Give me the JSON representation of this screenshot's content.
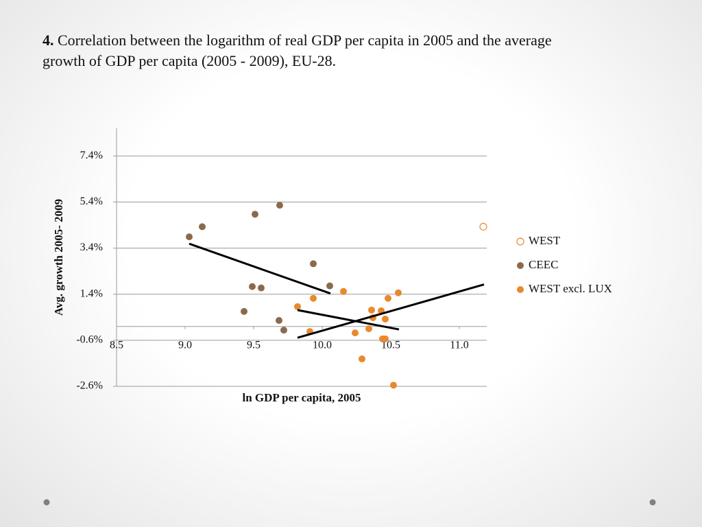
{
  "chart_data": {
    "type": "scatter",
    "title_number": "4.",
    "title": "Correlation between the logarithm of real GDP per capita in 2005 and the average growth of GDP per capita (2005 - 2009), EU-28.",
    "x_label": "ln GDP per capita, 2005",
    "y_label": "Avg. growth 2005- 2009",
    "xlim": [
      8.5,
      11.2
    ],
    "ylim": [
      -2.6,
      8.6
    ],
    "xticks": [
      8.5,
      {
        "value": 9,
        "label": "9.0"
      },
      9.5,
      {
        "value": 10,
        "label": "10.0"
      },
      10.5,
      {
        "value": 11,
        "label": "11.0"
      }
    ],
    "yticks": [
      {
        "value": -2.6,
        "label": "-2.6%"
      },
      {
        "value": -0.6,
        "label": "-0.6%"
      },
      {
        "value": 1.4,
        "label": "1.4%"
      },
      {
        "value": 3.4,
        "label": "3.4%"
      },
      {
        "value": 5.4,
        "label": "5.4%"
      },
      {
        "value": 7.4,
        "label": "7.4%"
      }
    ],
    "grid": true,
    "legend": "right",
    "series": [
      {
        "name": "WEST",
        "color": "#e8892f",
        "marker": "open",
        "x": [
          11.175
        ],
        "y": [
          4.33
        ]
      },
      {
        "name": "CEEC",
        "color": "#8b6a4c",
        "marker": "filled",
        "x": [
          9.03,
          9.125,
          9.51,
          9.69,
          9.935,
          9.49,
          9.555,
          10.055,
          9.43,
          9.685,
          9.72
        ],
        "y": [
          3.89,
          4.33,
          4.87,
          5.26,
          2.72,
          1.73,
          1.67,
          1.76,
          0.65,
          0.26,
          -0.16
        ]
      },
      {
        "name": "WEST excl. LUX",
        "color": "#e8892f",
        "marker": "filled",
        "x": [
          9.82,
          9.935,
          10.155,
          9.91,
          10.24,
          10.29,
          10.34,
          10.36,
          10.37,
          10.43,
          10.46,
          10.44,
          10.46,
          10.48,
          10.555,
          10.52
        ],
        "y": [
          0.86,
          1.22,
          1.52,
          -0.22,
          -0.28,
          -1.41,
          -0.1,
          0.71,
          0.38,
          0.68,
          0.32,
          -0.54,
          -0.54,
          1.22,
          1.46,
          -2.55
        ]
      }
    ],
    "trendlines": [
      {
        "color": "#000000",
        "x": [
          9.03,
          10.06
        ],
        "y": [
          3.59,
          1.43
        ]
      },
      {
        "color": "#000000",
        "x": [
          9.82,
          10.56
        ],
        "y": [
          0.71,
          -0.13
        ]
      },
      {
        "color": "#000000",
        "x": [
          9.82,
          11.18
        ],
        "y": [
          -0.49,
          1.82
        ]
      }
    ]
  }
}
